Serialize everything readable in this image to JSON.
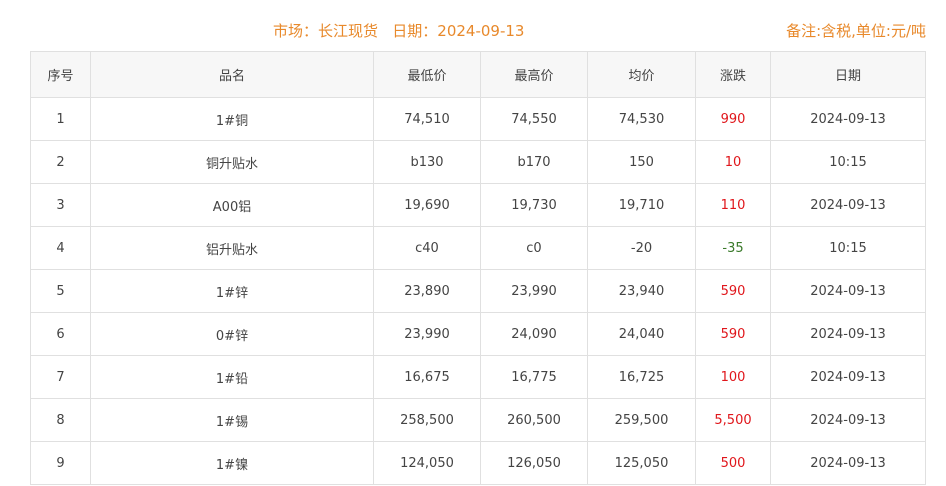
{
  "header": {
    "title": "市场：长江现货   日期：2024-09-13",
    "note": "备注:含税,单位:元/吨"
  },
  "columns": [
    "序号",
    "品名",
    "最低价",
    "最高价",
    "均价",
    "涨跌",
    "日期"
  ],
  "colors": {
    "accent": "#e8892b",
    "up": "#e0161b",
    "down": "#3a7a2a"
  },
  "rows": [
    {
      "no": "1",
      "name": "1#铜",
      "low": "74,510",
      "high": "74,550",
      "avg": "74,530",
      "change": "990",
      "dir": "up",
      "date": "2024-09-13"
    },
    {
      "no": "2",
      "name": "铜升贴水",
      "low": "b130",
      "high": "b170",
      "avg": "150",
      "change": "10",
      "dir": "up",
      "date": "10:15"
    },
    {
      "no": "3",
      "name": "A00铝",
      "low": "19,690",
      "high": "19,730",
      "avg": "19,710",
      "change": "110",
      "dir": "up",
      "date": "2024-09-13"
    },
    {
      "no": "4",
      "name": "铝升贴水",
      "low": "c40",
      "high": "c0",
      "avg": "-20",
      "change": "-35",
      "dir": "down",
      "date": "10:15"
    },
    {
      "no": "5",
      "name": "1#锌",
      "low": "23,890",
      "high": "23,990",
      "avg": "23,940",
      "change": "590",
      "dir": "up",
      "date": "2024-09-13"
    },
    {
      "no": "6",
      "name": "0#锌",
      "low": "23,990",
      "high": "24,090",
      "avg": "24,040",
      "change": "590",
      "dir": "up",
      "date": "2024-09-13"
    },
    {
      "no": "7",
      "name": "1#铅",
      "low": "16,675",
      "high": "16,775",
      "avg": "16,725",
      "change": "100",
      "dir": "up",
      "date": "2024-09-13"
    },
    {
      "no": "8",
      "name": "1#锡",
      "low": "258,500",
      "high": "260,500",
      "avg": "259,500",
      "change": "5,500",
      "dir": "up",
      "date": "2024-09-13"
    },
    {
      "no": "9",
      "name": "1#镍",
      "low": "124,050",
      "high": "126,050",
      "avg": "125,050",
      "change": "500",
      "dir": "up",
      "date": "2024-09-13"
    }
  ]
}
